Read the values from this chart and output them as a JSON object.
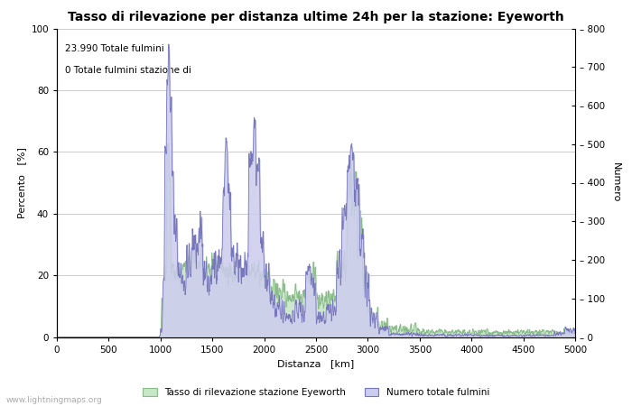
{
  "title": "Tasso di rilevazione per distanza ultime 24h per la stazione: Eyeworth",
  "xlabel": "Distanza   [km]",
  "ylabel_left": "Percento   [%]",
  "ylabel_right": "Numero",
  "annotation_line1": "23.990 Totale fulmini",
  "annotation_line2": "0 Totale fulmini stazione di",
  "xlim": [
    0,
    5000
  ],
  "ylim_left": [
    0,
    100
  ],
  "ylim_right": [
    0,
    800
  ],
  "xticks": [
    0,
    500,
    1000,
    1500,
    2000,
    2500,
    3000,
    3500,
    4000,
    4500,
    5000
  ],
  "yticks_left": [
    0,
    20,
    40,
    60,
    80,
    100
  ],
  "yticks_right": [
    0,
    100,
    200,
    300,
    400,
    500,
    600,
    700,
    800
  ],
  "legend_green": "Tasso di rilevazione stazione Eyeworth",
  "legend_blue": "Numero totale fulmini",
  "color_green_fill": "#c8e6c8",
  "color_green_line": "#88bb88",
  "color_blue_fill": "#ccccee",
  "color_blue_line": "#7777bb",
  "watermark": "www.lightningmaps.org",
  "bg_color": "#ffffff",
  "grid_color": "#cccccc",
  "title_fontsize": 10,
  "axis_fontsize": 8,
  "tick_fontsize": 7.5
}
